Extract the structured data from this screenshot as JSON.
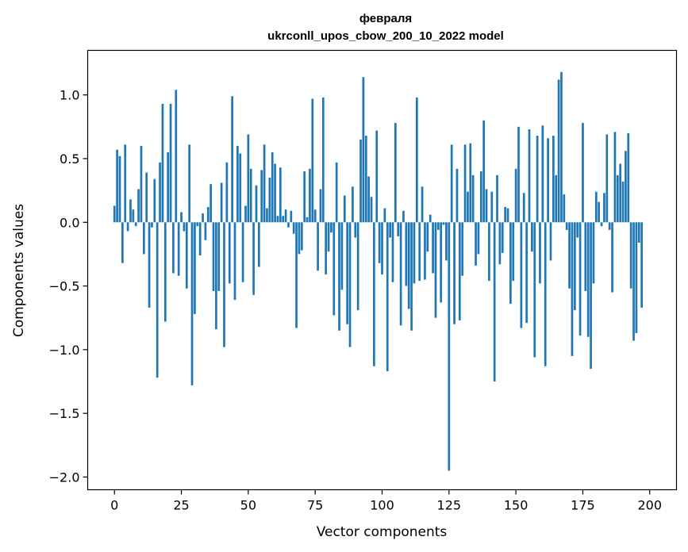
{
  "chart_data": {
    "type": "bar",
    "title_line1": "февраля",
    "title_line2": "ukrconll_upos_cbow_200_10_2022 model",
    "xlabel": "Vector components",
    "ylabel": "Components values",
    "xlim": [
      -10,
      210
    ],
    "ylim": [
      -2.1,
      1.35
    ],
    "xticks": [
      0,
      25,
      50,
      75,
      100,
      125,
      150,
      175,
      200
    ],
    "xtick_labels": [
      "0",
      "25",
      "50",
      "75",
      "100",
      "125",
      "150",
      "175",
      "200"
    ],
    "yticks": [
      -2.0,
      -1.5,
      -1.0,
      -0.5,
      0.0,
      0.5,
      1.0
    ],
    "ytick_labels": [
      "−2.0",
      "−1.5",
      "−1.0",
      "−0.5",
      "0.0",
      "0.5",
      "1.0"
    ],
    "bar_color": "#1f77b4",
    "grid": false,
    "values": [
      0.13,
      0.57,
      0.52,
      -0.32,
      0.61,
      -0.07,
      0.18,
      0.1,
      -0.03,
      0.26,
      0.6,
      -0.25,
      0.39,
      -0.67,
      -0.04,
      0.34,
      -1.22,
      0.47,
      0.93,
      -0.78,
      0.55,
      0.93,
      -0.4,
      1.04,
      -0.42,
      0.08,
      -0.07,
      -0.52,
      0.61,
      -1.28,
      -0.72,
      -0.03,
      -0.26,
      0.07,
      -0.14,
      0.12,
      0.3,
      -0.54,
      -0.84,
      -0.54,
      0.31,
      -0.98,
      0.47,
      -0.48,
      0.99,
      -0.61,
      0.6,
      0.54,
      -0.47,
      0.13,
      0.69,
      0.42,
      -0.57,
      0.29,
      -0.35,
      0.41,
      0.61,
      0.11,
      0.35,
      0.55,
      0.46,
      0.05,
      0.43,
      0.05,
      0.1,
      -0.04,
      0.09,
      -0.09,
      -0.83,
      -0.25,
      -0.22,
      0.4,
      0.04,
      0.42,
      0.97,
      0.1,
      -0.38,
      0.26,
      0.98,
      -0.41,
      -0.23,
      -0.08,
      -0.73,
      0.47,
      -0.85,
      -0.53,
      0.21,
      -0.8,
      -0.98,
      0.28,
      -0.12,
      -0.69,
      0.65,
      1.14,
      0.68,
      0.36,
      0.2,
      -1.13,
      0.72,
      -0.32,
      -0.41,
      0.11,
      -1.17,
      -0.12,
      -0.47,
      0.78,
      -0.11,
      -0.81,
      0.09,
      -0.5,
      -0.68,
      -0.85,
      -0.48,
      0.98,
      -0.46,
      0.28,
      -0.45,
      -0.23,
      0.06,
      -0.4,
      -0.75,
      -0.06,
      -0.63,
      -0.02,
      -0.3,
      -1.95,
      0.61,
      -0.8,
      0.42,
      -0.77,
      -0.42,
      0.61,
      0.24,
      0.62,
      0.37,
      -0.34,
      -0.25,
      0.4,
      0.8,
      0.26,
      -0.46,
      0.24,
      -1.25,
      0.37,
      -0.33,
      -0.24,
      0.12,
      0.11,
      -0.64,
      -0.46,
      0.42,
      0.75,
      -0.83,
      0.23,
      -0.79,
      0.73,
      -0.23,
      -1.06,
      0.68,
      -0.48,
      0.76,
      -1.13,
      0.66,
      -0.3,
      0.68,
      0.37,
      1.12,
      1.18,
      0.22,
      -0.06,
      -0.52,
      -1.05,
      -0.69,
      -0.12,
      -0.89,
      0.78,
      -0.54,
      -0.9,
      -1.15,
      -0.48,
      0.24,
      0.16,
      -0.03,
      0.23,
      0.69,
      -0.06,
      -0.55,
      0.71,
      0.37,
      0.46,
      0.32,
      0.56,
      0.7,
      -0.52,
      -0.93,
      -0.87,
      -0.16,
      -0.67
    ]
  }
}
